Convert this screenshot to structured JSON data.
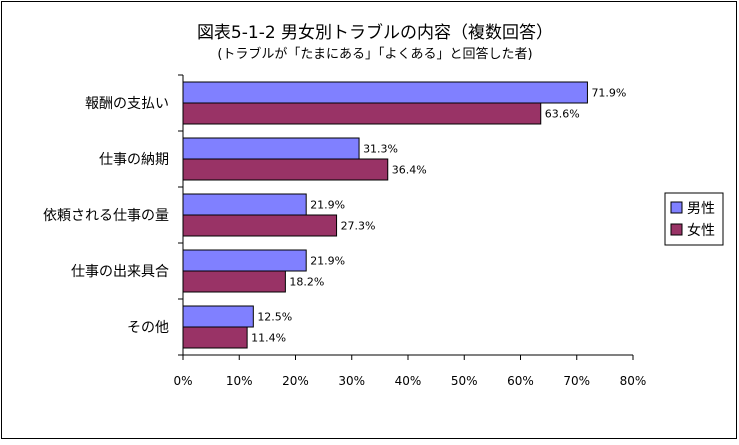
{
  "chart_data": {
    "type": "bar",
    "orientation": "horizontal",
    "title": "図表5-1-2  男女別トラブルの内容（複数回答）",
    "subtitle": "(トラブルが「たまにある」「よくある」と回答した者)",
    "categories": [
      "報酬の支払い",
      "仕事の納期",
      "依頼される仕事の量",
      "仕事の出来具合",
      "その他"
    ],
    "series": [
      {
        "name": "男性",
        "color": "#8080FF",
        "values": [
          71.9,
          31.3,
          21.9,
          21.9,
          12.5
        ],
        "labels": [
          "71.9%",
          "31.3%",
          "21.9%",
          "21.9%",
          "12.5%"
        ]
      },
      {
        "name": "女性",
        "color": "#993366",
        "values": [
          63.6,
          36.4,
          27.3,
          18.2,
          11.4
        ],
        "labels": [
          "63.6%",
          "36.4%",
          "27.3%",
          "18.2%",
          "11.4%"
        ]
      }
    ],
    "xlim": [
      0,
      80
    ],
    "xticks": [
      0,
      10,
      20,
      30,
      40,
      50,
      60,
      70,
      80
    ],
    "xtick_labels": [
      "0%",
      "10%",
      "20%",
      "30%",
      "40%",
      "50%",
      "60%",
      "70%",
      "80%"
    ],
    "grid": false,
    "legend_position": "right"
  }
}
